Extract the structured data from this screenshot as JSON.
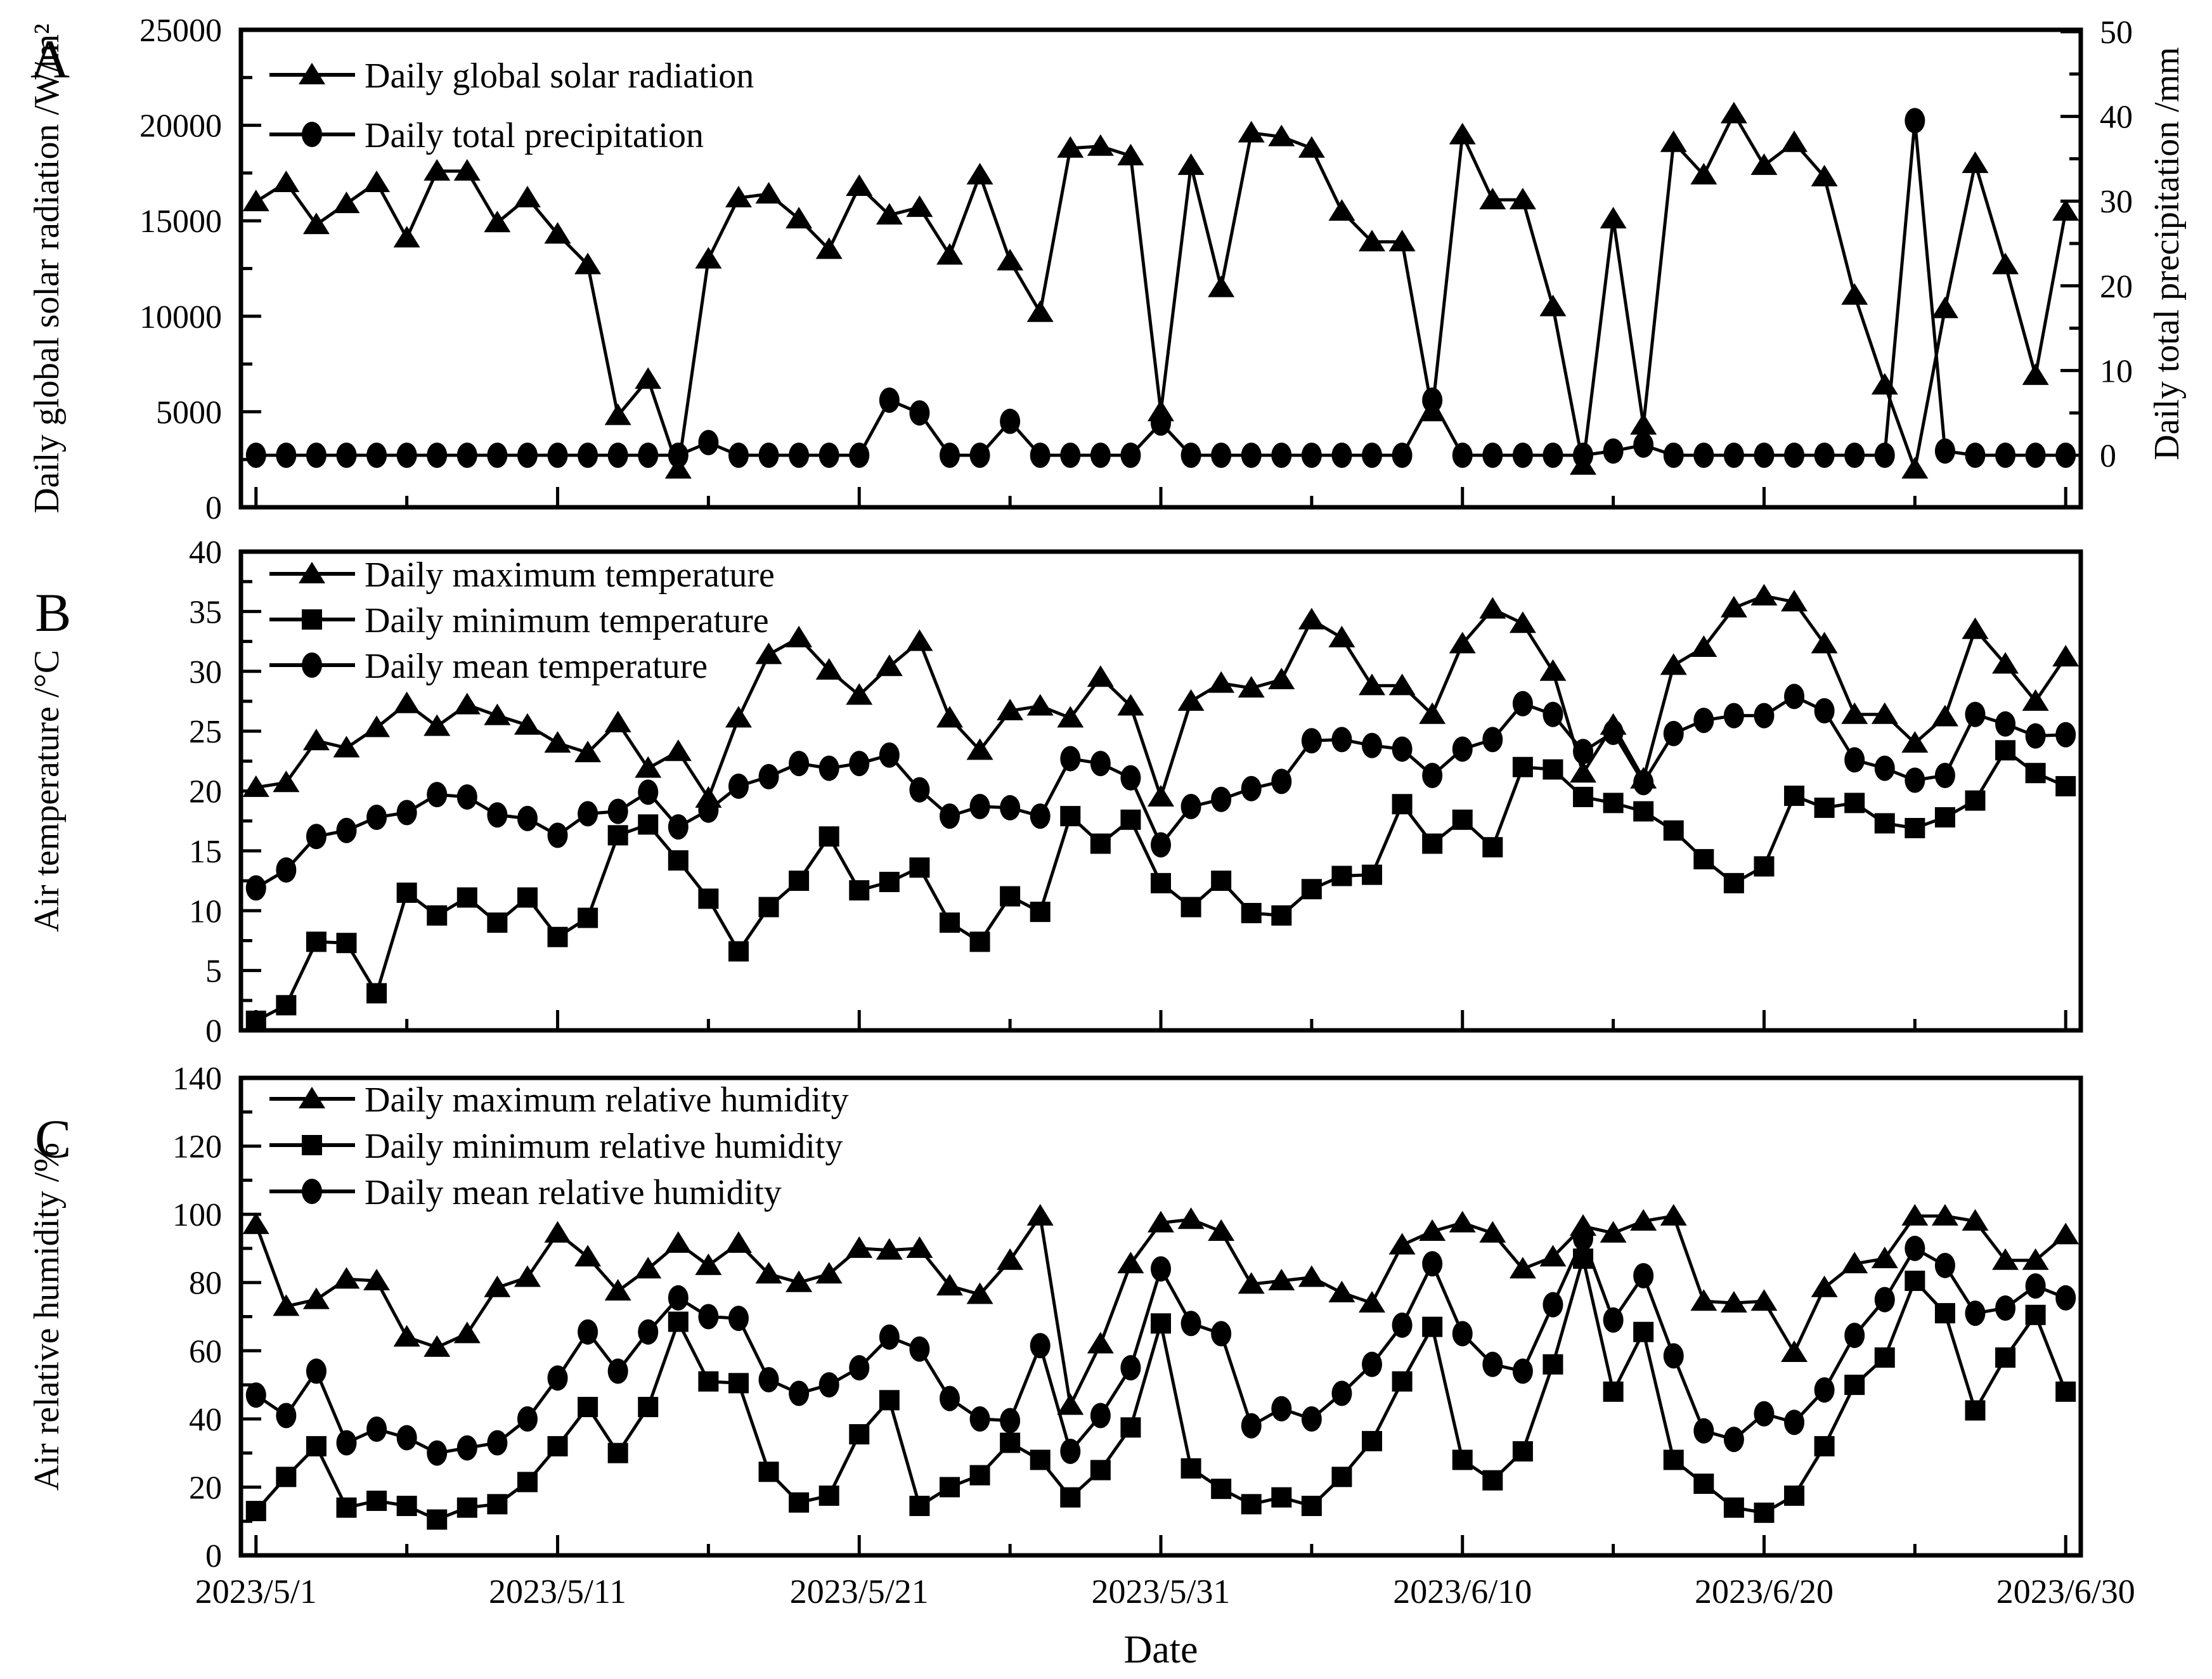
{
  "figure": {
    "background": "#ffffff",
    "ink_color": "#000000",
    "panel_letters": [
      "A",
      "B",
      "C"
    ],
    "x_axis": {
      "label": "Date",
      "tick_labels": [
        "2023/5/1",
        "2023/5/11",
        "2023/5/21",
        "2023/5/31",
        "2023/6/10",
        "2023/6/20",
        "2023/6/30"
      ],
      "tick_days": [
        1,
        11,
        21,
        31,
        41,
        51,
        61
      ],
      "minor_tick_days": [
        6,
        16,
        26,
        36,
        46,
        56
      ],
      "n_days": 61
    }
  },
  "chart_data": [
    {
      "type": "line",
      "panel": "A",
      "title": "",
      "xlabel": "Date",
      "y_left": {
        "label": "Daily global solar radiation /W/m²",
        "min": 0,
        "max": 25000,
        "tick_labels": [
          "0",
          "5000",
          "10000",
          "15000",
          "20000",
          "25000"
        ],
        "minor_step": 2500
      },
      "y_right": {
        "label": "Daily total precipitation /mm",
        "min": 0,
        "max": 50,
        "tick_labels": [
          "0",
          "10",
          "20",
          "30",
          "40",
          "50"
        ],
        "minor_step": 5,
        "zero_offset_note": "right-axis 0 sits above panel bottom"
      },
      "legend_position": "top-left",
      "grid": false,
      "series": [
        {
          "name": "Daily global solar radiation",
          "marker": "triangle",
          "axis": "left",
          "values": [
            16000,
            17000,
            14800,
            15900,
            17000,
            14100,
            17600,
            17600,
            14900,
            16200,
            14300,
            12700,
            4800,
            6700,
            2000,
            13000,
            16200,
            16400,
            15100,
            13500,
            16800,
            15300,
            15700,
            13200,
            17400,
            12900,
            10200,
            18800,
            18900,
            18400,
            5000,
            17900,
            11500,
            19600,
            19400,
            18800,
            15500,
            13900,
            13900,
            5000,
            19500,
            16100,
            16100,
            10500,
            2200,
            15100,
            4300,
            19100,
            17400,
            20600,
            17900,
            19100,
            17300,
            11100,
            6400,
            2000,
            10400,
            18000,
            12700,
            6900,
            15500
          ]
        },
        {
          "name": "Daily total precipitation",
          "marker": "circle",
          "axis": "right",
          "values": [
            0,
            0,
            0,
            0,
            0,
            0,
            0,
            0,
            0,
            0,
            0,
            0,
            0,
            0,
            0,
            1.5,
            0,
            0,
            0,
            0,
            0,
            6.5,
            5,
            0,
            0,
            4,
            0,
            0,
            0,
            0,
            3.8,
            0,
            0,
            0,
            0,
            0,
            0,
            0,
            0,
            6.5,
            0,
            0,
            0,
            0,
            0,
            0.5,
            1.2,
            0,
            0,
            0,
            0,
            0,
            0,
            0,
            0,
            39.5,
            0.5,
            0,
            0,
            0,
            0
          ]
        }
      ]
    },
    {
      "type": "line",
      "panel": "B",
      "title": "",
      "xlabel": "Date",
      "y_left": {
        "label": "Air temperature /°C",
        "min": 0,
        "max": 40,
        "tick_labels": [
          "0",
          "5",
          "10",
          "15",
          "20",
          "25",
          "30",
          "35",
          "40"
        ],
        "minor_step": 2.5
      },
      "legend_position": "top-left",
      "grid": false,
      "series": [
        {
          "name": "Daily maximum temperature",
          "marker": "triangle",
          "axis": "left",
          "values": [
            20.3,
            20.7,
            24.2,
            23.6,
            25.3,
            27.3,
            25.4,
            27.2,
            26.3,
            25.5,
            24.0,
            23.2,
            25.7,
            21.9,
            23.3,
            19.4,
            26.1,
            31.4,
            32.8,
            30.1,
            28.0,
            30.4,
            32.5,
            26.1,
            23.4,
            26.7,
            27.1,
            26.1,
            29.5,
            27.1,
            19.5,
            27.5,
            29.0,
            28.6,
            29.3,
            34.3,
            32.8,
            28.8,
            28.8,
            26.4,
            32.3,
            35.2,
            34.0,
            30.0,
            21.5,
            25.5,
            21.0,
            30.5,
            32.0,
            35.3,
            36.3,
            35.8,
            32.3,
            26.4,
            26.4,
            24.0,
            26.2,
            33.5,
            30.6,
            27.5,
            31.2
          ]
        },
        {
          "name": "Daily minimum temperature",
          "marker": "square",
          "axis": "left",
          "values": [
            0.8,
            2.1,
            7.4,
            7.3,
            3.1,
            11.5,
            9.6,
            11.1,
            9.0,
            11.1,
            7.8,
            9.4,
            16.3,
            17.2,
            14.2,
            11.0,
            6.6,
            10.3,
            12.5,
            16.2,
            11.7,
            12.4,
            13.6,
            9.0,
            7.4,
            11.2,
            9.9,
            17.9,
            15.6,
            17.6,
            12.3,
            10.3,
            12.5,
            9.8,
            9.6,
            11.8,
            12.9,
            13.0,
            18.9,
            15.6,
            17.6,
            15.3,
            22.0,
            21.8,
            19.5,
            19.0,
            18.3,
            16.7,
            14.3,
            12.3,
            13.7,
            19.6,
            18.6,
            19.0,
            17.3,
            16.9,
            17.8,
            19.2,
            23.4,
            21.5,
            20.4
          ]
        },
        {
          "name": "Daily mean temperature",
          "marker": "circle",
          "axis": "left",
          "values": [
            11.9,
            13.4,
            16.2,
            16.7,
            17.8,
            18.2,
            19.7,
            19.5,
            18.0,
            17.7,
            16.3,
            18.1,
            18.3,
            19.9,
            17.0,
            18.4,
            20.4,
            21.2,
            22.3,
            21.9,
            22.3,
            23.0,
            20.1,
            17.9,
            18.7,
            18.6,
            17.9,
            22.7,
            22.3,
            21.1,
            15.5,
            18.7,
            19.3,
            20.2,
            20.8,
            24.2,
            24.3,
            23.8,
            23.5,
            21.3,
            23.5,
            24.3,
            27.3,
            26.4,
            23.3,
            24.9,
            20.7,
            24.8,
            25.9,
            26.3,
            26.3,
            27.9,
            26.7,
            22.6,
            21.9,
            20.9,
            21.3,
            26.4,
            25.6,
            24.6,
            24.7
          ]
        }
      ]
    },
    {
      "type": "line",
      "panel": "C",
      "title": "",
      "xlabel": "Date",
      "y_left": {
        "label": "Air relative humidity /%",
        "min": 0,
        "max": 140,
        "tick_labels": [
          "0",
          "20",
          "40",
          "60",
          "80",
          "100",
          "120",
          "140"
        ],
        "minor_step": 10
      },
      "legend_position": "top-left",
      "grid": false,
      "series": [
        {
          "name": "Daily maximum relative humidity",
          "marker": "triangle",
          "axis": "left",
          "values": [
            97,
            73,
            75,
            81,
            80.5,
            64,
            61,
            65,
            78.5,
            81.5,
            94.5,
            87.5,
            77.5,
            84,
            91.5,
            85,
            91.5,
            82.5,
            80,
            82.5,
            90,
            89.5,
            90,
            79,
            76.5,
            86.5,
            99.5,
            44,
            62,
            85.5,
            97.5,
            98.5,
            95,
            79.5,
            80.5,
            81.5,
            77,
            74,
            91,
            95,
            97.5,
            94.5,
            84,
            87.5,
            96.5,
            94.5,
            98,
            99.5,
            74.5,
            74,
            74.5,
            59.5,
            78.5,
            85.5,
            87,
            99.5,
            99.5,
            98,
            86.5,
            86.5,
            94
          ]
        },
        {
          "name": "Daily minimum relative humidity",
          "marker": "square",
          "axis": "left",
          "values": [
            13,
            23,
            32,
            14,
            16,
            14.5,
            10.5,
            14,
            15,
            21.5,
            32,
            43.5,
            30,
            43.5,
            68.5,
            51,
            50.5,
            24.5,
            15.5,
            17.5,
            35.5,
            45.5,
            14.5,
            20,
            23.5,
            33,
            28,
            17,
            25,
            37.5,
            68,
            25.5,
            19.5,
            15,
            17,
            14.5,
            23,
            33.5,
            51,
            67,
            28,
            22,
            30.5,
            56,
            87,
            48,
            65.5,
            28,
            21,
            14,
            12.5,
            17.5,
            32,
            50,
            58,
            80.5,
            71,
            42.5,
            58,
            70.5,
            48
          ]
        },
        {
          "name": "Daily mean relative humidity",
          "marker": "circle",
          "axis": "left",
          "values": [
            47,
            41,
            54,
            33,
            37,
            34.5,
            30,
            31.5,
            33,
            40,
            52,
            65.5,
            54,
            65.5,
            75.5,
            70,
            69.5,
            51.5,
            47.5,
            50,
            55,
            64,
            60.5,
            46,
            40,
            39.5,
            61.5,
            30.5,
            41,
            55,
            84,
            68,
            65,
            38,
            43,
            40,
            47.5,
            56,
            67.5,
            85.5,
            65,
            56,
            54,
            73.5,
            93,
            69,
            82,
            58.5,
            36.5,
            34,
            41.5,
            39,
            48.5,
            64.5,
            75,
            90,
            85,
            71,
            72.5,
            79,
            75.5
          ]
        }
      ]
    }
  ]
}
